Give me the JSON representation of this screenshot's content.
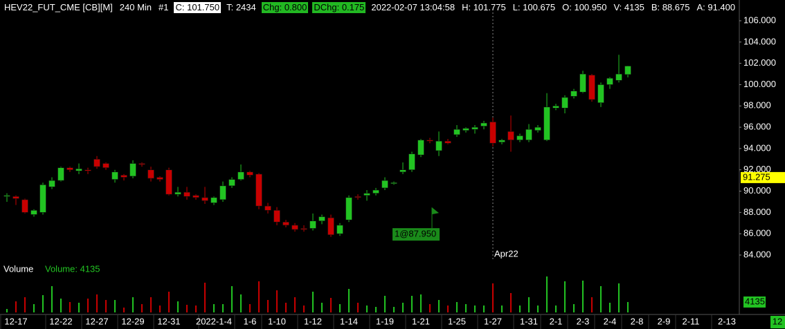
{
  "chart_data": {
    "type": "candlestick",
    "header": [
      {
        "text": "HEV22_FUT_CME [CB][M]"
      },
      {
        "text": "240 Min"
      },
      {
        "text": "#1"
      },
      {
        "text": "C: 101.750",
        "box": "#ffffff",
        "ink": "#000000"
      },
      {
        "text": "T: 2434"
      },
      {
        "text": "Chg: 0.800",
        "box": "#22b822",
        "ink": "#000000"
      },
      {
        "text": "DChg: 0.175",
        "box": "#22b822",
        "ink": "#000000"
      },
      {
        "text": "2022-02-07 13:04:58"
      },
      {
        "text": "H: 101.775"
      },
      {
        "text": "L: 100.675"
      },
      {
        "text": "O: 100.950"
      },
      {
        "text": "V: 4135"
      },
      {
        "text": "B: 88.675"
      },
      {
        "text": "A: 91.400"
      }
    ],
    "up_color": "#22c322",
    "down_color": "#c80000",
    "categories": [
      null,
      "12-17",
      null,
      null,
      null,
      null,
      "12-22",
      null,
      null,
      null,
      "12-27",
      null,
      null,
      null,
      "12-29",
      null,
      null,
      null,
      "12-31",
      null,
      null,
      null,
      null,
      "2022-1-4",
      null,
      null,
      null,
      "1-6",
      null,
      null,
      "1-10",
      null,
      null,
      null,
      "1-12",
      null,
      null,
      null,
      "1-14",
      null,
      null,
      null,
      "1-19",
      null,
      null,
      null,
      "1-21",
      null,
      null,
      null,
      "1-25",
      null,
      null,
      null,
      "1-27",
      null,
      null,
      null,
      "1-31",
      null,
      null,
      "2-1",
      null,
      null,
      "2-3",
      null,
      null,
      "2-4",
      null,
      null,
      "2-8",
      null,
      null,
      "2-9",
      null,
      null,
      "2-11",
      null,
      null,
      null,
      "2-13"
    ],
    "open": [
      89.5,
      89.5,
      89.2,
      87.8,
      88.0,
      90.4,
      91.0,
      92.2,
      91.9,
      92.0,
      93.0,
      92.6,
      91.1,
      91.5,
      91.4,
      92.6,
      92.0,
      91.3,
      92.0,
      89.7,
      89.9,
      89.6,
      89.4,
      88.9,
      89.2,
      90.5,
      91.1,
      91.8,
      91.6,
      88.6,
      88.2,
      87.1,
      86.8,
      86.5,
      86.5,
      87.2,
      87.5,
      86.0,
      87.3,
      89.5,
      89.6,
      89.8,
      90.3,
      90.7,
      91.8,
      92.0,
      93.4,
      94.8,
      93.8,
      94.7,
      95.3,
      95.7,
      95.8,
      96.1,
      96.5,
      94.6,
      95.6,
      94.8,
      94.8,
      95.7,
      94.8,
      97.8,
      97.8,
      98.9,
      99.3,
      100.9,
      98.3,
      100.0,
      100.4,
      100.95,
      null,
      null,
      null,
      null,
      null,
      null,
      null,
      null,
      null,
      null,
      null
    ],
    "high": [
      89.8,
      89.6,
      89.3,
      88.3,
      90.8,
      91.3,
      92.3,
      92.3,
      92.6,
      92.2,
      93.3,
      92.7,
      92.0,
      91.6,
      92.9,
      92.7,
      92.3,
      91.4,
      92.2,
      90.4,
      90.4,
      89.7,
      90.4,
      89.5,
      90.9,
      91.3,
      92.5,
      91.9,
      91.7,
      88.9,
      88.5,
      87.3,
      87.0,
      86.8,
      87.9,
      87.8,
      87.8,
      87.0,
      89.6,
      89.7,
      90.1,
      90.3,
      91.3,
      90.9,
      92.7,
      93.7,
      94.9,
      95.0,
      95.6,
      94.9,
      96.2,
      96.0,
      96.2,
      96.6,
      96.9,
      94.9,
      97.1,
      95.4,
      96.3,
      96.2,
      99.2,
      98.2,
      99.0,
      99.6,
      101.3,
      101.0,
      100.2,
      100.7,
      102.8,
      101.775,
      null,
      null,
      null,
      null,
      null,
      null,
      null,
      null,
      null,
      null,
      null
    ],
    "low": [
      89.0,
      88.7,
      87.9,
      87.6,
      87.8,
      90.2,
      90.9,
      91.8,
      91.6,
      91.6,
      92.1,
      92.0,
      90.8,
      91.0,
      91.2,
      92.3,
      90.9,
      90.9,
      89.6,
      89.5,
      89.2,
      89.2,
      88.8,
      88.7,
      89.0,
      90.3,
      91.0,
      91.3,
      88.3,
      87.9,
      86.8,
      86.6,
      86.2,
      86.2,
      86.3,
      86.9,
      85.7,
      85.8,
      87.1,
      89.2,
      89.1,
      89.6,
      90.1,
      90.6,
      91.6,
      91.8,
      93.2,
      94.5,
      93.3,
      94.4,
      95.1,
      95.5,
      95.4,
      95.8,
      94.2,
      94.4,
      93.7,
      94.6,
      94.6,
      95.5,
      94.7,
      97.6,
      97.3,
      98.7,
      99.2,
      98.4,
      97.9,
      99.6,
      100.2,
      100.675,
      null,
      null,
      null,
      null,
      null,
      null,
      null,
      null,
      null,
      null,
      null
    ],
    "close": [
      89.6,
      89.3,
      88.0,
      88.2,
      90.6,
      91.0,
      92.2,
      92.0,
      92.1,
      91.9,
      92.3,
      92.2,
      91.8,
      91.3,
      92.6,
      92.5,
      91.2,
      91.1,
      89.7,
      89.9,
      89.5,
      89.4,
      89.1,
      89.4,
      90.5,
      91.1,
      91.8,
      91.5,
      88.6,
      88.2,
      87.1,
      86.8,
      86.4,
      86.4,
      87.2,
      87.6,
      85.9,
      86.8,
      89.4,
      89.4,
      89.8,
      90.1,
      91.0,
      90.8,
      92.0,
      93.5,
      94.8,
      94.7,
      94.7,
      94.5,
      95.8,
      95.9,
      96.0,
      96.4,
      94.5,
      94.8,
      94.8,
      95.2,
      95.8,
      96.0,
      97.9,
      98.0,
      98.8,
      99.4,
      101.0,
      98.6,
      100.0,
      100.6,
      101.0,
      101.75,
      null,
      null,
      null,
      null,
      null,
      null,
      null,
      null,
      null,
      null,
      null
    ],
    "volume_label": "Volume",
    "volume_title": "Volume: 4135",
    "volume": [
      1375,
      4400,
      6050,
      3300,
      6875,
      10450,
      5500,
      4125,
      3850,
      5500,
      7150,
      4950,
      4950,
      1925,
      6050,
      3300,
      6050,
      2750,
      8250,
      4400,
      3025,
      2750,
      11825,
      3300,
      3300,
      10450,
      7150,
      3300,
      12375,
      4950,
      8800,
      3850,
      6050,
      2750,
      8250,
      3850,
      5775,
      3300,
      9350,
      3850,
      2750,
      2200,
      6600,
      2200,
      3850,
      6600,
      7150,
      3300,
      4950,
      2750,
      4125,
      3300,
      2750,
      2750,
      11550,
      2750,
      7700,
      2750,
      6050,
      2750,
      14300,
      2750,
      12375,
      3300,
      12650,
      6050,
      10450,
      3850,
      11550,
      4135,
      null,
      null,
      null,
      null,
      null,
      null,
      null,
      null,
      null,
      null,
      null
    ],
    "ylim": [
      84,
      106
    ],
    "yticks": [
      {
        "value": 84,
        "label": "84.000"
      },
      {
        "value": 86,
        "label": "86.000"
      },
      {
        "value": 88,
        "label": "88.000"
      },
      {
        "value": 90,
        "label": "90.000"
      },
      {
        "value": 92,
        "label": "92.000"
      },
      {
        "value": 94,
        "label": "94.000"
      },
      {
        "value": 96,
        "label": "96.000"
      },
      {
        "value": 98,
        "label": "98.000"
      },
      {
        "value": 100,
        "label": "100.000"
      },
      {
        "value": 102,
        "label": "102.000"
      },
      {
        "value": 104,
        "label": "104.000"
      },
      {
        "value": 106,
        "label": "106.000"
      }
    ],
    "price_marker": 91.275,
    "price_marker_color": "#ffff00",
    "trade_marker": {
      "label": "1@87.950",
      "price": 87.95,
      "color": "#1a8a1a"
    },
    "rollover": {
      "label": "Apr22",
      "category": "1-27"
    },
    "last_volume_box_color": "#22c322",
    "corner_label": "12",
    "grid": false
  }
}
